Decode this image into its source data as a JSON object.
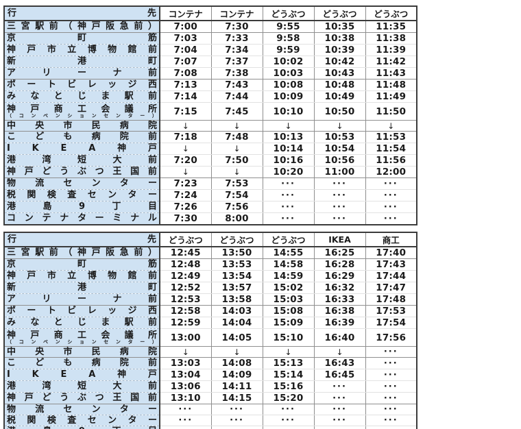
{
  "corner": {
    "left": "行",
    "right": "先"
  },
  "stations": [
    {
      "name": "三宮駅前（神戸阪急前）"
    },
    {
      "name": "京町筋"
    },
    {
      "name": "神戸市立博物館前"
    },
    {
      "name": "新港町"
    },
    {
      "name": "アリーナ前"
    },
    {
      "name": "ポートビレッジ西"
    },
    {
      "name": "みなとじま駅前"
    },
    {
      "name": "神戸商工会議所",
      "sub": "（コンベンションセンター）"
    },
    {
      "name": "中央市民病院"
    },
    {
      "name": "こども病院前"
    },
    {
      "name": "IKEA神戸"
    },
    {
      "name": "港湾短大前"
    },
    {
      "name": "神戸どうぶつ王国前"
    },
    {
      "name": "物流センター"
    },
    {
      "name": "税関検査センター"
    },
    {
      "name": "港島9丁目"
    },
    {
      "name": "コンテナターミナル"
    }
  ],
  "tables": [
    {
      "id": "morning",
      "columns": [
        "コンテナ",
        "コンテナ",
        "どうぶつ",
        "どうぶつ",
        "どうぶつ"
      ],
      "rows": [
        [
          "7:00",
          "7:30",
          "9:55",
          "10:35",
          "11:35"
        ],
        [
          "7:03",
          "7:33",
          "9:58",
          "10:38",
          "11:38"
        ],
        [
          "7:04",
          "7:34",
          "9:59",
          "10:39",
          "11:39"
        ],
        [
          "7:07",
          "7:37",
          "10:02",
          "10:42",
          "11:42"
        ],
        [
          "7:08",
          "7:38",
          "10:03",
          "10:43",
          "11:43"
        ],
        [
          "7:13",
          "7:43",
          "10:08",
          "10:48",
          "11:48"
        ],
        [
          "7:14",
          "7:44",
          "10:09",
          "10:49",
          "11:49"
        ],
        [
          "7:15",
          "7:45",
          "10:10",
          "10:50",
          "11:50"
        ],
        [
          "↓",
          "↓",
          "↓",
          "↓",
          "↓"
        ],
        [
          "7:18",
          "7:48",
          "10:13",
          "10:53",
          "11:53"
        ],
        [
          "↓",
          "↓",
          "10:14",
          "10:54",
          "11:54"
        ],
        [
          "7:20",
          "7:50",
          "10:16",
          "10:56",
          "11:56"
        ],
        [
          "↓",
          "↓",
          "10:20",
          "11:00",
          "12:00"
        ],
        [
          "7:23",
          "7:53",
          "···",
          "···",
          "···"
        ],
        [
          "7:24",
          "7:54",
          "···",
          "···",
          "···"
        ],
        [
          "7:26",
          "7:56",
          "···",
          "···",
          "···"
        ],
        [
          "7:30",
          "8:00",
          "···",
          "···",
          "···"
        ]
      ]
    },
    {
      "id": "afternoon",
      "columns": [
        "どうぶつ",
        "どうぶつ",
        "どうぶつ",
        "IKEA",
        "商工"
      ],
      "rows": [
        [
          "12:45",
          "13:50",
          "14:55",
          "16:25",
          "17:40"
        ],
        [
          "12:48",
          "13:53",
          "14:58",
          "16:28",
          "17:43"
        ],
        [
          "12:49",
          "13:54",
          "14:59",
          "16:29",
          "17:44"
        ],
        [
          "12:52",
          "13:57",
          "15:02",
          "16:32",
          "17:47"
        ],
        [
          "12:53",
          "13:58",
          "15:03",
          "16:33",
          "17:48"
        ],
        [
          "12:58",
          "14:03",
          "15:08",
          "16:38",
          "17:53"
        ],
        [
          "12:59",
          "14:04",
          "15:09",
          "16:39",
          "17:54"
        ],
        [
          "13:00",
          "14:05",
          "15:10",
          "16:40",
          "17:56"
        ],
        [
          "↓",
          "↓",
          "↓",
          "↓",
          "···"
        ],
        [
          "13:03",
          "14:08",
          "15:13",
          "16:43",
          "···"
        ],
        [
          "13:04",
          "14:09",
          "15:14",
          "16:45",
          "···"
        ],
        [
          "13:06",
          "14:11",
          "15:16",
          "···",
          "···"
        ],
        [
          "13:10",
          "14:15",
          "15:20",
          "···",
          "···"
        ],
        [
          "···",
          "···",
          "···",
          "···",
          "···"
        ],
        [
          "···",
          "···",
          "···",
          "···",
          "···"
        ],
        [
          "···",
          "···",
          "···",
          "···",
          "···"
        ],
        [
          "···",
          "···",
          "···",
          "···",
          "···"
        ]
      ]
    }
  ],
  "layout": {
    "group_break_after": [
      0,
      4,
      7,
      8,
      12
    ],
    "time_column_count": 5
  },
  "colors": {
    "station_bg": "#cfe2f3",
    "outer_border": "#3b3b3b",
    "group_line": "#8f8f8f",
    "light_line": "#e2e2e2",
    "column_line": "#8d8d8d",
    "text": "#1a1a1a",
    "page_bg": "#ffffff"
  }
}
